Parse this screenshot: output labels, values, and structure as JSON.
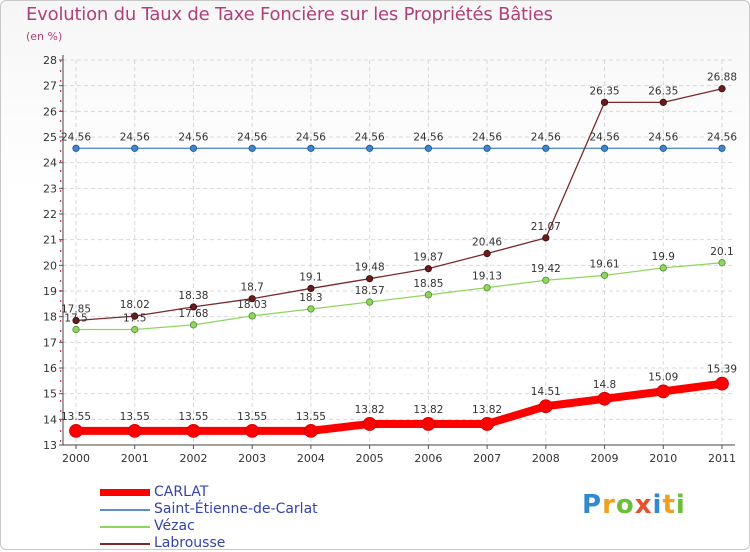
{
  "header": {
    "title": "Evolution du Taux de Taxe Foncière sur les Propriétés Bâties",
    "subtitle": "(en %)"
  },
  "logo_text": "Proxiti",
  "colors": {
    "title": "#b0407a",
    "CARLAT": "#ff0000",
    "Saint-Étienne-de-Carlat": "#5b8fc6",
    "Vézac": "#8fd660",
    "Labrousse": "#7a2a2a"
  },
  "chart_data": {
    "type": "line",
    "title": "Evolution du Taux de Taxe Foncière sur les Propriétés Bâties",
    "ylabel": "(en %)",
    "xlabel": "",
    "ylim": [
      13,
      28
    ],
    "yticks": [
      13,
      14,
      15,
      16,
      17,
      18,
      19,
      20,
      21,
      22,
      23,
      24,
      25,
      26,
      27,
      28
    ],
    "x": [
      "2000",
      "2001",
      "2002",
      "2003",
      "2004",
      "2005",
      "2006",
      "2007",
      "2008",
      "2009",
      "2010",
      "2011"
    ],
    "grid": true,
    "series": [
      {
        "name": "CARLAT",
        "values": [
          13.55,
          13.55,
          13.55,
          13.55,
          13.55,
          13.82,
          13.82,
          13.82,
          14.51,
          14.8,
          15.09,
          15.39
        ],
        "labels": [
          "13.55",
          "13.55",
          "13.55",
          "13.55",
          "13.55",
          "13.82",
          "13.82",
          "13.82",
          "14.51",
          "14.8",
          "15.09",
          "15.39"
        ]
      },
      {
        "name": "Saint-Étienne-de-Carlat",
        "values": [
          24.56,
          24.56,
          24.56,
          24.56,
          24.56,
          24.56,
          24.56,
          24.56,
          24.56,
          24.56,
          24.56,
          24.56
        ],
        "labels": [
          "24.56",
          "24.56",
          "24.56",
          "24.56",
          "24.56",
          "24.56",
          "24.56",
          "24.56",
          "24.56",
          "24.56",
          "24.56",
          "24.56"
        ]
      },
      {
        "name": "Vézac",
        "values": [
          17.5,
          17.5,
          17.68,
          18.03,
          18.3,
          18.57,
          18.85,
          19.13,
          19.42,
          19.61,
          19.9,
          20.1
        ],
        "labels": [
          "17.5",
          "17.5",
          "17.68",
          "18.03",
          "18.3",
          "18.57",
          "18.85",
          "19.13",
          "19.42",
          "19.61",
          "19.9",
          "20.1"
        ]
      },
      {
        "name": "Labrousse",
        "values": [
          17.85,
          18.02,
          18.38,
          18.7,
          19.1,
          19.48,
          19.87,
          20.46,
          21.07,
          26.35,
          26.35,
          26.88
        ],
        "labels": [
          "17.85",
          "18.02",
          "18.38",
          "18.7",
          "19.1",
          "19.48",
          "19.87",
          "20.46",
          "21.07",
          "26.35",
          "26.35",
          "26.88"
        ]
      }
    ],
    "legend": [
      "CARLAT",
      "Saint-Étienne-de-Carlat",
      "Vézac",
      "Labrousse"
    ],
    "legend_position": "bottom-left"
  }
}
